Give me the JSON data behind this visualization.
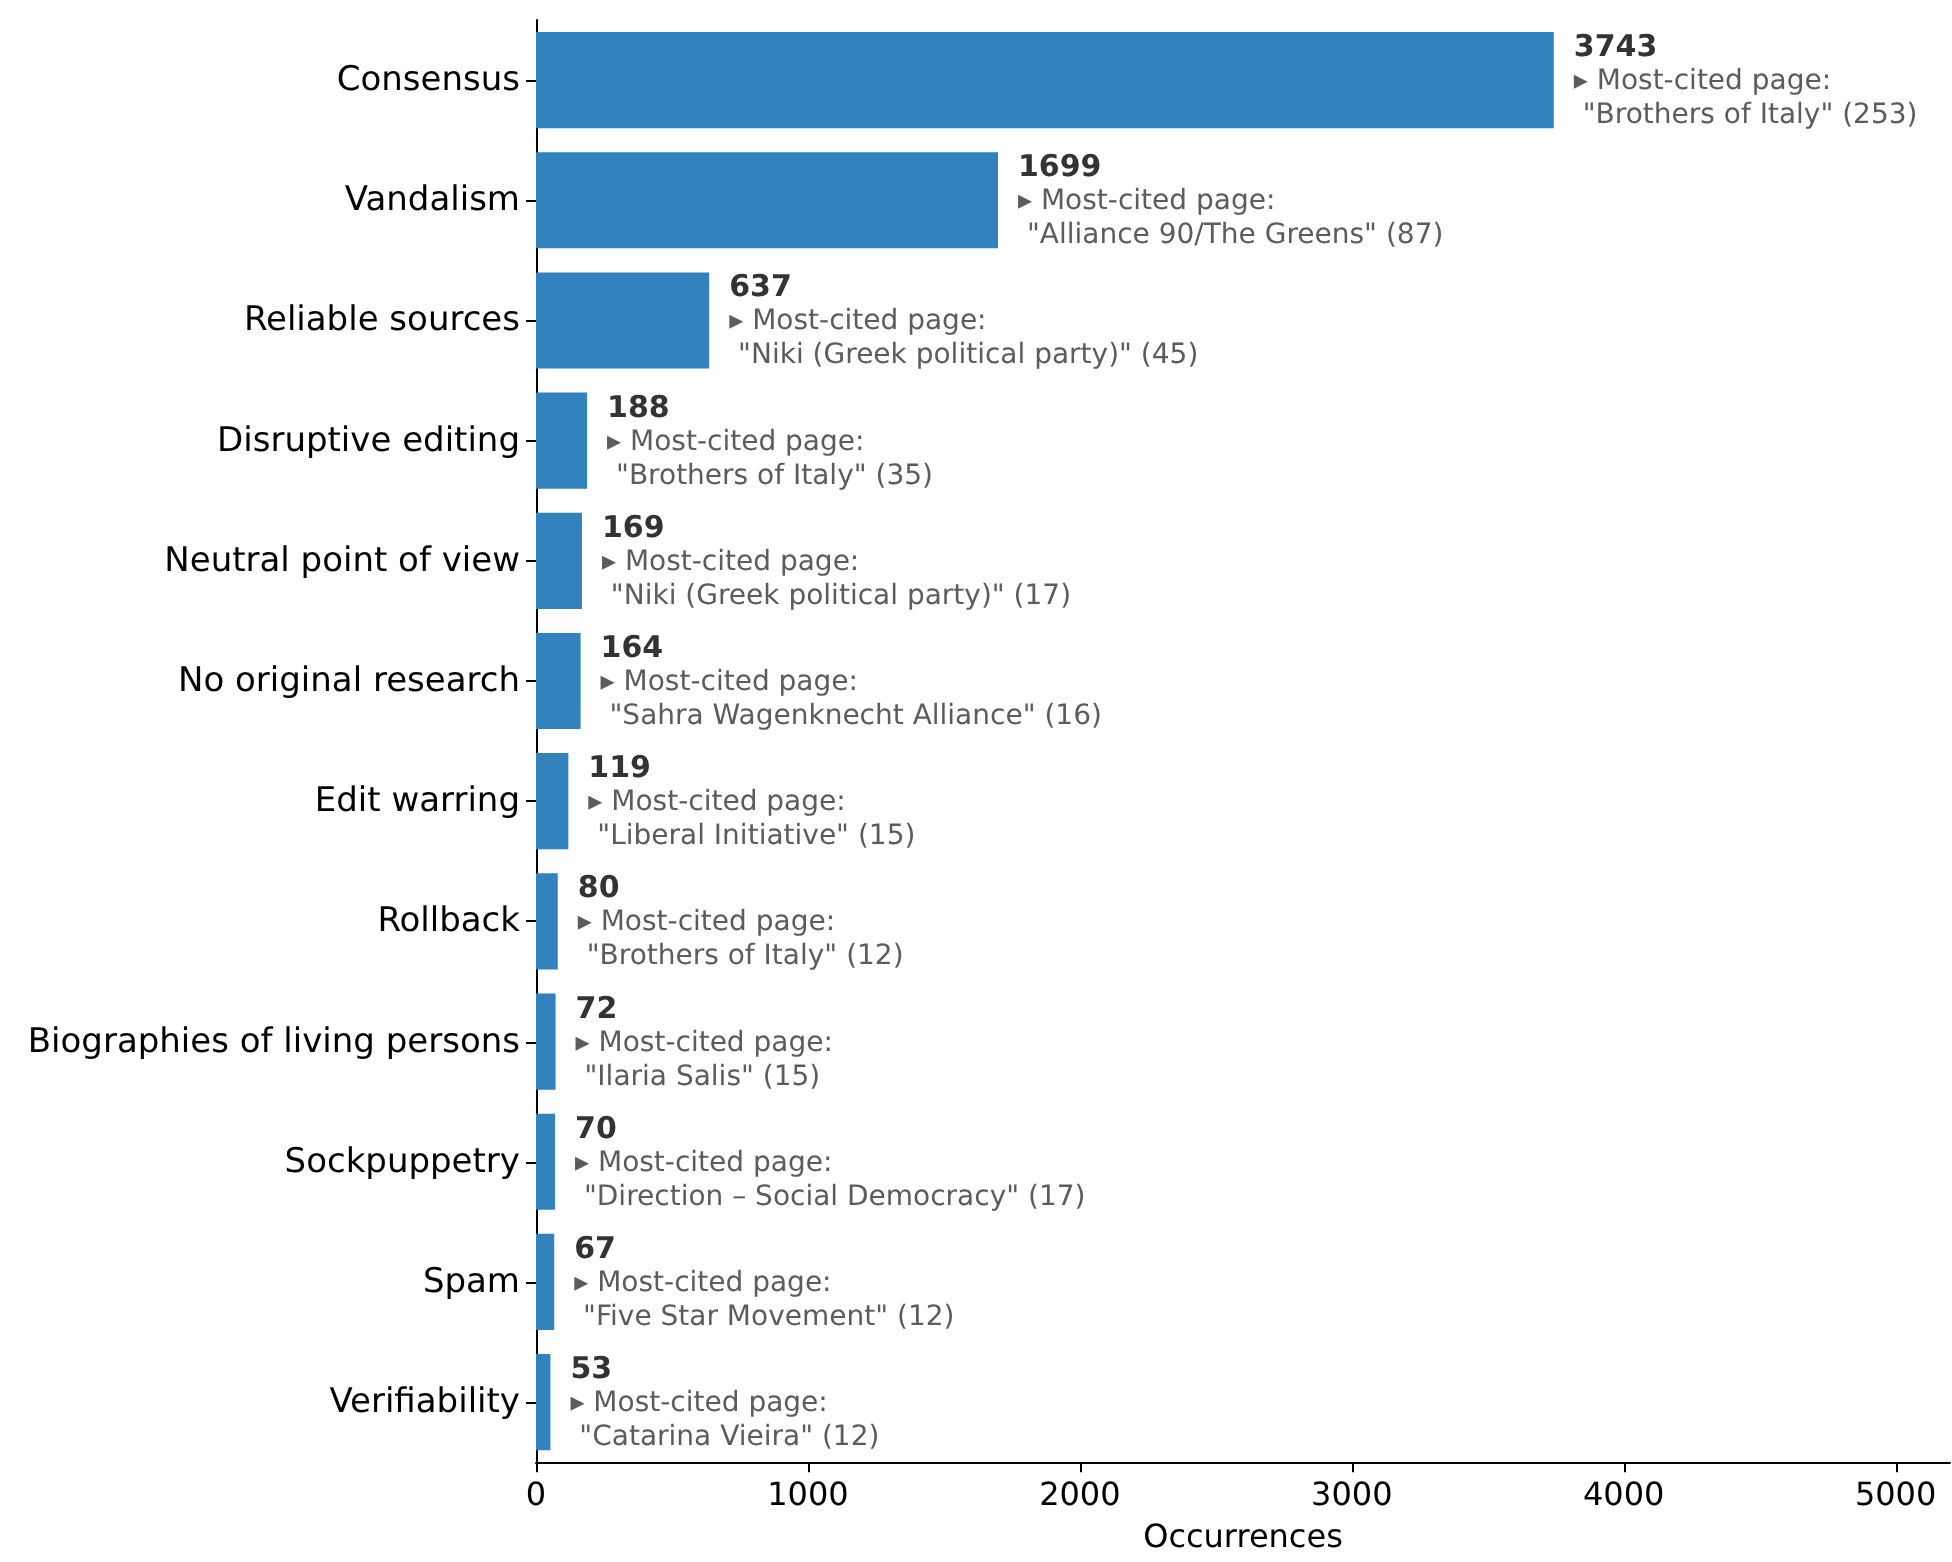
{
  "chart_data": {
    "type": "bar",
    "orientation": "horizontal",
    "xlabel": "Occurrences",
    "categories": [
      "Consensus",
      "Vandalism",
      "Reliable sources",
      "Disruptive editing",
      "Neutral point of view",
      "No original research",
      "Edit warring",
      "Rollback",
      "Biographies of living persons",
      "Sockpuppetry",
      "Spam",
      "Verifiability"
    ],
    "values": [
      3743,
      1699,
      637,
      188,
      169,
      164,
      119,
      80,
      72,
      70,
      67,
      53
    ],
    "color": "#3182bd",
    "data_labels": true,
    "grid": false,
    "xlim": [
      0,
      5200
    ],
    "xticks": [
      0,
      1000,
      2000,
      3000,
      4000,
      5000
    ],
    "annotations": [
      {
        "text": "▸ Most-cited page:\n \"Brothers of Italy\" (253)",
        "x": 3743,
        "y": "Consensus"
      },
      {
        "text": "▸ Most-cited page:\n \"Alliance 90/The Greens\" (87)",
        "x": 1699,
        "y": "Vandalism"
      },
      {
        "text": "▸ Most-cited page:\n \"Niki (Greek political party)\" (45)",
        "x": 637,
        "y": "Reliable sources"
      },
      {
        "text": "▸ Most-cited page:\n \"Brothers of Italy\" (35)",
        "x": 188,
        "y": "Disruptive editing"
      },
      {
        "text": "▸ Most-cited page:\n \"Niki (Greek political party)\" (17)",
        "x": 169,
        "y": "Neutral point of view"
      },
      {
        "text": "▸ Most-cited page:\n \"Sahra Wagenknecht Alliance\" (16)",
        "x": 164,
        "y": "No original research"
      },
      {
        "text": "▸ Most-cited page:\n \"Liberal Initiative\" (15)",
        "x": 119,
        "y": "Edit warring"
      },
      {
        "text": "▸ Most-cited page:\n \"Brothers of Italy\" (12)",
        "x": 80,
        "y": "Rollback"
      },
      {
        "text": "▸ Most-cited page:\n \"Ilaria Salis\" (15)",
        "x": 72,
        "y": "Biographies of living persons"
      },
      {
        "text": "▸ Most-cited page:\n \"Direction – Social Democracy\" (17)",
        "x": 70,
        "y": "Sockpuppetry"
      },
      {
        "text": "▸ Most-cited page:\n \"Five Star Movement\" (12)",
        "x": 67,
        "y": "Spam"
      },
      {
        "text": "▸ Most-cited page:\n \"Catarina Vieira\" (12)",
        "x": 53,
        "y": "Verifiability"
      }
    ]
  }
}
